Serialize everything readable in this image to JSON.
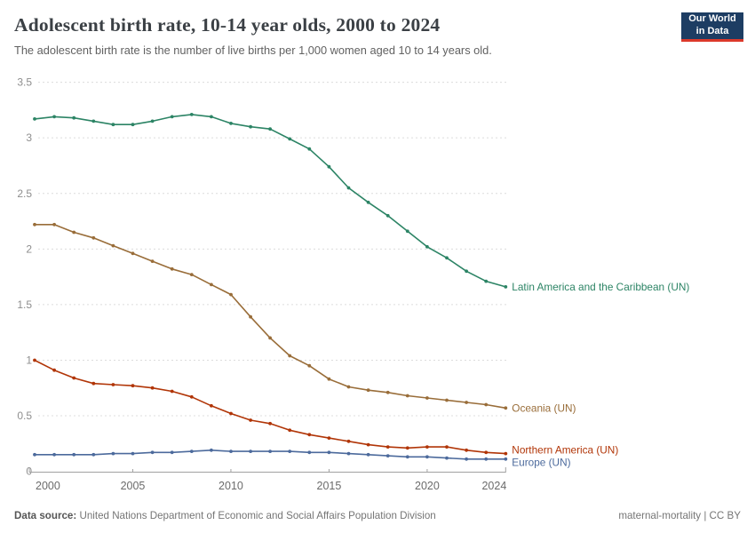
{
  "header": {
    "title": "Adolescent birth rate, 10-14 year olds, 2000 to 2024",
    "subtitle": "The adolescent birth rate is the number of live births per 1,000 women aged 10 to 14 years old.",
    "logo": {
      "line1": "Our World",
      "line2": "in Data",
      "bg": "#1d3d63",
      "accent": "#dc392b"
    }
  },
  "footer": {
    "datasource_label": "Data source:",
    "datasource_text": " United Nations Department of Economic and Social Affairs Population Division",
    "credit": "maternal-mortality | CC BY"
  },
  "chart_data": {
    "type": "line",
    "title": "Adolescent birth rate, 10-14 year olds, 2000 to 2024",
    "xlabel": "",
    "ylabel": "live births per 1,000 women aged 10-14",
    "xlim": [
      2000,
      2024
    ],
    "ylim": [
      0,
      3.5
    ],
    "grid": "horizontal-dashed",
    "legend_position": "end-of-line",
    "x": [
      2000,
      2001,
      2002,
      2003,
      2004,
      2005,
      2006,
      2007,
      2008,
      2009,
      2010,
      2011,
      2012,
      2013,
      2014,
      2015,
      2016,
      2017,
      2018,
      2019,
      2020,
      2021,
      2022,
      2023,
      2024
    ],
    "x_ticks": [
      2000,
      2005,
      2010,
      2015,
      2020,
      2024
    ],
    "y_ticks": [
      0,
      0.5,
      1,
      1.5,
      2,
      2.5,
      3,
      3.5
    ],
    "series": [
      {
        "name": "Latin America and the Caribbean (UN)",
        "color": "#2C8465",
        "values": [
          3.17,
          3.19,
          3.18,
          3.15,
          3.12,
          3.12,
          3.15,
          3.19,
          3.21,
          3.19,
          3.13,
          3.1,
          3.08,
          2.99,
          2.9,
          2.74,
          2.55,
          2.42,
          2.3,
          2.16,
          2.02,
          1.92,
          1.8,
          1.71,
          1.66
        ]
      },
      {
        "name": "Oceania (UN)",
        "color": "#996D39",
        "values": [
          2.22,
          2.22,
          2.15,
          2.1,
          2.03,
          1.96,
          1.89,
          1.82,
          1.77,
          1.68,
          1.59,
          1.39,
          1.2,
          1.04,
          0.95,
          0.83,
          0.76,
          0.73,
          0.71,
          0.68,
          0.66,
          0.64,
          0.62,
          0.6,
          0.57
        ]
      },
      {
        "name": "Northern America (UN)",
        "color": "#B13507",
        "values": [
          1.0,
          0.91,
          0.84,
          0.79,
          0.78,
          0.77,
          0.75,
          0.72,
          0.67,
          0.59,
          0.52,
          0.46,
          0.43,
          0.37,
          0.33,
          0.3,
          0.27,
          0.24,
          0.22,
          0.21,
          0.22,
          0.22,
          0.19,
          0.17,
          0.16
        ]
      },
      {
        "name": "Europe (UN)",
        "color": "#4C6A9C",
        "values": [
          0.15,
          0.15,
          0.15,
          0.15,
          0.16,
          0.16,
          0.17,
          0.17,
          0.18,
          0.19,
          0.18,
          0.18,
          0.18,
          0.18,
          0.17,
          0.17,
          0.16,
          0.15,
          0.14,
          0.13,
          0.13,
          0.12,
          0.11,
          0.11,
          0.11
        ]
      }
    ]
  }
}
